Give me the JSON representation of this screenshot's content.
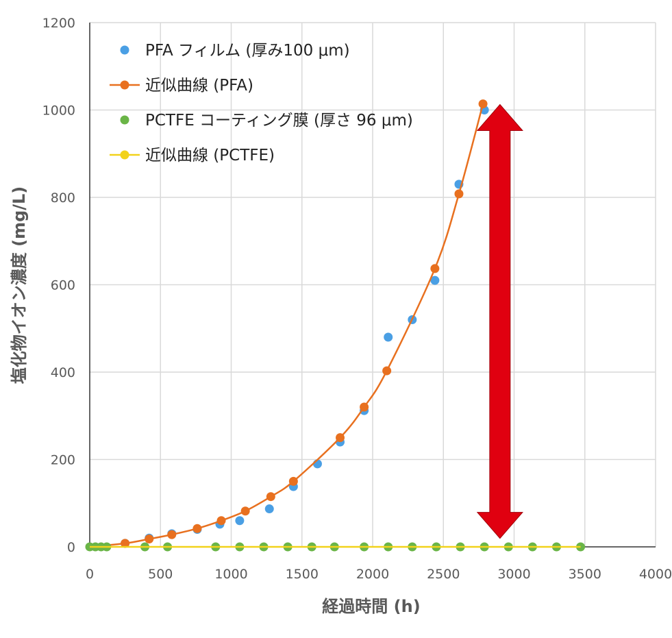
{
  "chart_data": {
    "type": "scatter",
    "xlabel": "経過時間 (h)",
    "ylabel": "塩化物イオン濃度 (mg/L)",
    "xlim": [
      0,
      4000
    ],
    "ylim": [
      0,
      1200
    ],
    "x_ticks": [
      "0",
      "500",
      "1000",
      "1500",
      "2000",
      "2500",
      "3000",
      "3500",
      "4000"
    ],
    "y_ticks": [
      "0",
      "200",
      "400",
      "600",
      "800",
      "1000",
      "1200"
    ],
    "grid": true,
    "legend_position": "top-left",
    "annotation": "red double-headed vertical arrow spanning from about 30 to 1000 mg/L at about 2900 h",
    "series": [
      {
        "name": "PFA フィルム (厚み100 μm)",
        "kind": "markers",
        "color": "#4a9fe4",
        "points": [
          [
            250,
            8
          ],
          [
            420,
            20
          ],
          [
            580,
            30
          ],
          [
            760,
            40
          ],
          [
            920,
            52
          ],
          [
            1060,
            60
          ],
          [
            1270,
            87
          ],
          [
            1440,
            138
          ],
          [
            1610,
            190
          ],
          [
            1770,
            240
          ],
          [
            1940,
            312
          ],
          [
            2110,
            480
          ],
          [
            2280,
            520
          ],
          [
            2440,
            610
          ],
          [
            2610,
            830
          ],
          [
            2790,
            1000
          ]
        ]
      },
      {
        "name": "近似曲線 (PFA)",
        "kind": "line+markers",
        "color": "#e8701f",
        "points": [
          [
            0,
            0
          ],
          [
            250,
            8
          ],
          [
            420,
            18
          ],
          [
            580,
            28
          ],
          [
            760,
            42
          ],
          [
            930,
            60
          ],
          [
            1100,
            82
          ],
          [
            1280,
            115
          ],
          [
            1440,
            150
          ],
          [
            1770,
            250
          ],
          [
            1940,
            320
          ],
          [
            2100,
            403
          ],
          [
            2440,
            637
          ],
          [
            2610,
            808
          ],
          [
            2780,
            1014
          ]
        ]
      },
      {
        "name": "PCTFE コーティング膜 (厚さ 96 μm)",
        "kind": "markers",
        "color": "#6ab547",
        "points": [
          [
            0,
            0
          ],
          [
            40,
            0
          ],
          [
            80,
            0
          ],
          [
            120,
            0
          ],
          [
            390,
            0
          ],
          [
            550,
            0
          ],
          [
            890,
            0
          ],
          [
            1060,
            0
          ],
          [
            1230,
            0
          ],
          [
            1400,
            0
          ],
          [
            1570,
            0
          ],
          [
            1730,
            0
          ],
          [
            1940,
            0
          ],
          [
            2110,
            0
          ],
          [
            2280,
            0
          ],
          [
            2450,
            0
          ],
          [
            2620,
            0
          ],
          [
            2790,
            0
          ],
          [
            2960,
            0
          ],
          [
            3130,
            0
          ],
          [
            3300,
            0
          ],
          [
            3470,
            0
          ]
        ]
      },
      {
        "name": "近似曲線 (PCTFE)",
        "kind": "line",
        "color": "#f2d21b",
        "points": [
          [
            0,
            0
          ],
          [
            3470,
            0
          ]
        ]
      }
    ]
  },
  "colors": {
    "arrow": "#e00010",
    "grid": "#d9d9d9",
    "axis": "#333333"
  }
}
